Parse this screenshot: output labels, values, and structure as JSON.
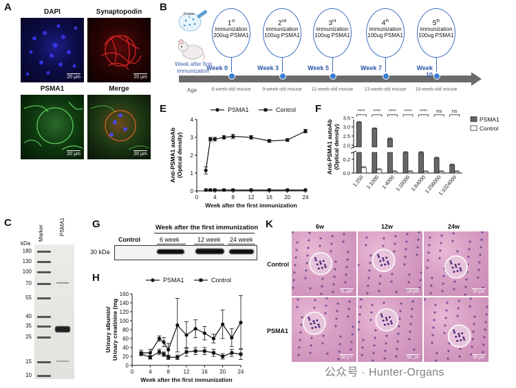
{
  "panels": {
    "A": {
      "label": "A",
      "images": [
        {
          "title": "DAPI",
          "scale": "20 μm"
        },
        {
          "title": "Synaptopodin",
          "scale": "20 μm"
        },
        {
          "title": "PSMA1",
          "scale": "20 μm"
        },
        {
          "title": "Merge",
          "scale": "20 μm"
        }
      ]
    },
    "B": {
      "label": "B",
      "caption": "Week after first immunization",
      "protein_label": "Protein",
      "age_label": "Age",
      "steps": [
        {
          "num": "1",
          "sup": "st",
          "line1": "immunization",
          "line2": "200ug PSMA1",
          "week": "Week 0",
          "age": "6-week-old mouse"
        },
        {
          "num": "2",
          "sup": "nd",
          "line1": "immunization",
          "line2": "100ug PSMA1",
          "week": "Week 3",
          "age": "9-week-old mouse"
        },
        {
          "num": "3",
          "sup": "rd",
          "line1": "immunization",
          "line2": "100ug PSMA1",
          "week": "Week 5",
          "age": "11-week-old mouse"
        },
        {
          "num": "4",
          "sup": "th",
          "line1": "immunization",
          "line2": "100ug PSMA1",
          "week": "Week 7",
          "age": "13-week-old mouse"
        },
        {
          "num": "5",
          "sup": "th",
          "line1": "immunization",
          "line2": "100ug PSMA1",
          "week": "Week 10",
          "age": "16-week-old mouse"
        }
      ]
    },
    "C": {
      "label": "C",
      "unit": "kDa",
      "lanes": [
        "Marker",
        "PSMA1"
      ],
      "markers": [
        "180",
        "130",
        "100",
        "70",
        "55",
        "40",
        "35",
        "25",
        "15",
        "10"
      ]
    },
    "G": {
      "label": "G",
      "header": "Week after the first immunization",
      "lanes": [
        "Control",
        "6 week",
        "12 week",
        "24 week"
      ],
      "size": "30 kDa"
    },
    "K": {
      "label": "K",
      "cols": [
        "6w",
        "12w",
        "24w"
      ],
      "rows": [
        "Control",
        "PSMA1"
      ],
      "scale": "50 μm"
    }
  },
  "chart_data": [
    {
      "id": "E",
      "label": "E",
      "type": "line",
      "ylabel": "Anti-PSMA1 autoAb (Optical density)",
      "xlabel": "Week after the first immunization",
      "x": [
        2,
        3,
        4,
        6,
        8,
        12,
        16,
        20,
        24
      ],
      "xticks": [
        "0",
        "4",
        "8",
        "12",
        "16",
        "20",
        "24"
      ],
      "yticks": [
        "0",
        "1",
        "2",
        "3",
        "4"
      ],
      "xlim": [
        0,
        24
      ],
      "ylim": [
        0,
        4
      ],
      "series": [
        {
          "name": "PSMA1",
          "values": [
            1.15,
            2.9,
            2.9,
            3.0,
            3.05,
            3.0,
            2.8,
            2.85,
            3.35
          ],
          "err": [
            0.2,
            0.1,
            0.1,
            0.1,
            0.12,
            0.1,
            0.08,
            0.08,
            0.1
          ]
        },
        {
          "name": "Control",
          "values": [
            0.05,
            0.05,
            0.05,
            0.05,
            0.05,
            0.05,
            0.05,
            0.05,
            0.05
          ],
          "err": [
            0,
            0,
            0,
            0,
            0,
            0,
            0,
            0,
            0
          ]
        }
      ]
    },
    {
      "id": "F",
      "label": "F",
      "type": "bar",
      "ylabel": "Anti-PSMA1 autoAb (Optical density)",
      "categories": [
        "1:250",
        "1:1000",
        "1:4000",
        "1:16000",
        "1:64000",
        "1:256000",
        "1:1024000"
      ],
      "yticks_upper": [
        "2.0",
        "2.5",
        "3.0",
        "3.5"
      ],
      "yticks_lower": [
        "0.0",
        "0.2"
      ],
      "series": [
        {
          "name": "PSMA1",
          "values": [
            3.25,
            2.9,
            2.35,
            1.4,
            0.6,
            0.22,
            0.12
          ],
          "color": "#666666"
        },
        {
          "name": "Control",
          "values": [
            0.08,
            0.05,
            0.02,
            0.02,
            0.02,
            0.02,
            0.02
          ],
          "color": "#ffffff"
        }
      ],
      "significance": [
        "****",
        "****",
        "****",
        "****",
        "****",
        "ns",
        "ns"
      ]
    },
    {
      "id": "H",
      "label": "H",
      "type": "line",
      "ylabel": "Urinary albumin/ Urinary creatinine (mg/mg)",
      "xlabel": "Week after the first immunization",
      "x": [
        2,
        4,
        6,
        7,
        8,
        10,
        12,
        14,
        16,
        18,
        20,
        22,
        24
      ],
      "xticks": [
        "0",
        "4",
        "8",
        "12",
        "16",
        "20",
        "24"
      ],
      "yticks": [
        "0",
        "20",
        "40",
        "60",
        "80",
        "100",
        "120",
        "140",
        "160"
      ],
      "xlim": [
        0,
        24
      ],
      "ylim": [
        0,
        160
      ],
      "series": [
        {
          "name": "PSMA1",
          "values": [
            28,
            28,
            60,
            52,
            35,
            90,
            68,
            82,
            72,
            60,
            92,
            62,
            96
          ],
          "err": [
            6,
            8,
            6,
            10,
            14,
            60,
            30,
            20,
            15,
            10,
            32,
            20,
            60
          ]
        },
        {
          "name": "Control",
          "values": [
            26,
            18,
            30,
            25,
            18,
            18,
            30,
            32,
            32,
            28,
            20,
            28,
            25
          ],
          "err": [
            4,
            4,
            6,
            5,
            5,
            5,
            10,
            8,
            8,
            8,
            6,
            8,
            12
          ]
        }
      ]
    }
  ],
  "watermark": "公众号 · Hunter-Organs"
}
